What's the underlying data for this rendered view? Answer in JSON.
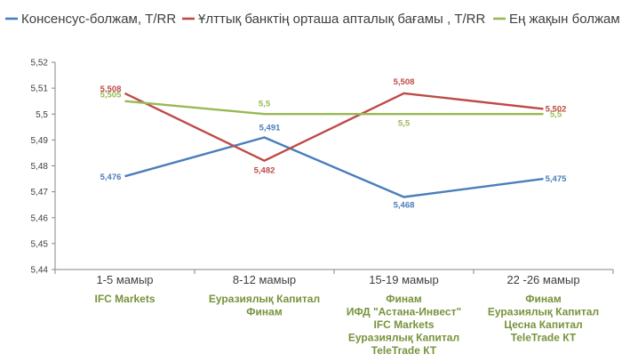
{
  "chart_data": {
    "type": "line",
    "categories": [
      "1-5 мамыр",
      "8-12 мамыр",
      "15-19 мамыр",
      "22 -26 мамыр"
    ],
    "category_sources": [
      [
        "IFC Markets"
      ],
      [
        "Еуразиялық Капитал",
        "Финам"
      ],
      [
        "Финам",
        "ИФД \"Астана-Инвест\"",
        "IFC Markets",
        "Еуразиялық Капитал",
        "TeleTrade КТ"
      ],
      [
        "Финам",
        "Еуразиялық Капитал",
        "Цесна Капитал",
        "TeleTrade КТ"
      ]
    ],
    "ylim": [
      5.44,
      5.52
    ],
    "yticks": [
      "5,44",
      "5,45",
      "5,46",
      "5,47",
      "5,48",
      "5,49",
      "5,5",
      "5,51",
      "5,52"
    ],
    "legend_position": "top",
    "grid": false,
    "series": [
      {
        "name": "Консенсус-болжам, Т/RR",
        "color": "#4a7ebb",
        "values": [
          5.476,
          5.491,
          5.468,
          5.475
        ],
        "labels": [
          "5,476",
          "5,491",
          "5,468",
          "5,475"
        ]
      },
      {
        "name": "Ұлттық банктің орташа апталық бағамы , Т/RR",
        "color": "#be4b48",
        "values": [
          5.508,
          5.482,
          5.508,
          5.502
        ],
        "labels": [
          "5,508",
          "5,482",
          "5,508",
          "5,502"
        ]
      },
      {
        "name": "Ең жақын болжам",
        "color": "#98b954",
        "values": [
          5.505,
          5.5,
          5.5,
          5.5
        ],
        "labels": [
          "5,505",
          "5,5",
          "5,5",
          "5,5"
        ]
      }
    ],
    "sources_color": "#77933c"
  }
}
